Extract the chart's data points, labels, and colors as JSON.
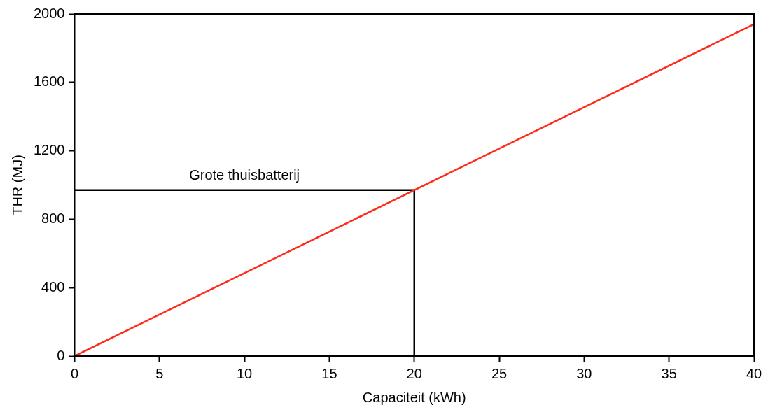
{
  "chart_data": {
    "type": "line",
    "xlabel": "Capaciteit (kWh)",
    "ylabel": "THR (MJ)",
    "series": [
      {
        "color": "#ff2a1a",
        "x": [
          0,
          40
        ],
        "values": [
          0,
          1940
        ]
      },
      {
        "color": "#000000",
        "x": [
          0,
          20,
          20
        ],
        "values": [
          970,
          970,
          0
        ]
      }
    ],
    "annotations": [
      {
        "text": "Grote thuisbatterij",
        "x": 10,
        "y": 970
      }
    ],
    "xlim": [
      0,
      40
    ],
    "xticks": [
      0,
      5,
      10,
      15,
      20,
      25,
      30,
      35,
      40
    ],
    "ylim": [
      0,
      2000
    ],
    "yticks": [
      0,
      400,
      800,
      1200,
      1600,
      2000
    ],
    "grid": false,
    "legend": false,
    "marker": "none",
    "line_style": "solid"
  }
}
